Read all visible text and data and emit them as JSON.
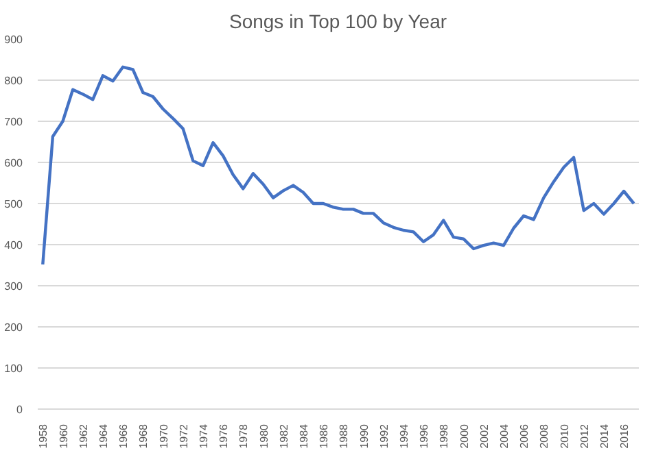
{
  "chart_data": {
    "type": "line",
    "title": "Songs in Top 100 by Year",
    "categories": [
      "1958",
      null,
      "1960",
      null,
      "1962",
      null,
      "1964",
      null,
      "1966",
      null,
      "1968",
      null,
      "1970",
      null,
      "1972",
      null,
      "1974",
      null,
      "1976",
      null,
      "1978",
      null,
      "1980",
      null,
      "1982",
      null,
      "1984",
      null,
      "1986",
      null,
      "1988",
      null,
      "1990",
      null,
      "1992",
      null,
      "1994",
      null,
      "1996",
      null,
      "1998",
      null,
      "2000",
      null,
      "2002",
      null,
      "2004",
      null,
      "2006",
      null,
      "2008",
      null,
      "2010",
      null,
      "2012",
      null,
      "2014",
      null,
      "2016",
      null
    ],
    "series": [
      {
        "color": "#4472c4",
        "values": [
          352,
          663,
          700,
          777,
          766,
          753,
          811,
          798,
          832,
          826,
          770,
          760,
          730,
          707,
          682,
          604,
          592,
          648,
          616,
          570,
          536,
          573,
          547,
          514,
          531,
          544,
          527,
          500,
          500,
          491,
          486,
          486,
          476,
          476,
          453,
          442,
          435,
          431,
          407,
          424,
          459,
          418,
          414,
          390,
          398,
          404,
          398,
          440,
          470,
          461,
          514,
          553,
          588,
          612,
          483,
          500,
          474,
          500,
          530,
          500
        ]
      }
    ],
    "ylim": [
      0,
      900
    ],
    "yticks": [
      0,
      100,
      200,
      300,
      400,
      500,
      600,
      700,
      800,
      900
    ],
    "grid": "y",
    "line_style": "solid"
  }
}
